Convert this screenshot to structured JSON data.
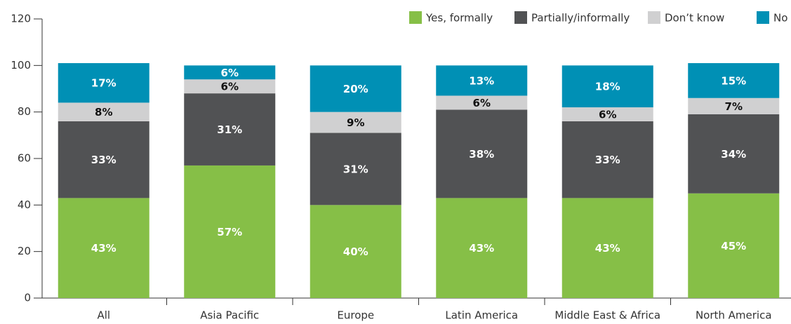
{
  "chart_data": {
    "type": "stacked_bar",
    "categories": [
      "All",
      "Asia Pacific",
      "Europe",
      "Latin America",
      "Middle East & Africa",
      "North America"
    ],
    "series": [
      {
        "name": "Yes, formally",
        "color": "#86bf47",
        "label_color": "#ffffff",
        "values": [
          43,
          57,
          40,
          43,
          43,
          45
        ],
        "value_labels": [
          "43%",
          "57%",
          "40%",
          "43%",
          "43%",
          "45%"
        ]
      },
      {
        "name": "Partially/informally",
        "color": "#515254",
        "label_color": "#ffffff",
        "values": [
          33,
          31,
          31,
          38,
          33,
          34
        ],
        "value_labels": [
          "33%",
          "31%",
          "31%",
          "38%",
          "33%",
          "34%"
        ]
      },
      {
        "name": "Don’t know",
        "color": "#d0d0d1",
        "label_color": "#111111",
        "values": [
          8,
          6,
          9,
          6,
          6,
          7
        ],
        "value_labels": [
          "8%",
          "6%",
          "9%",
          "6%",
          "6%",
          "7%"
        ]
      },
      {
        "name": "No",
        "color": "#0090b5",
        "label_color": "#ffffff",
        "values": [
          17,
          6,
          20,
          13,
          18,
          15
        ],
        "value_labels": [
          "17%",
          "6%",
          "20%",
          "13%",
          "18%",
          "15%"
        ]
      }
    ],
    "ylim": [
      0,
      120
    ],
    "yticks": [
      0,
      20,
      40,
      60,
      80,
      100,
      120
    ],
    "legend": "top-right"
  }
}
